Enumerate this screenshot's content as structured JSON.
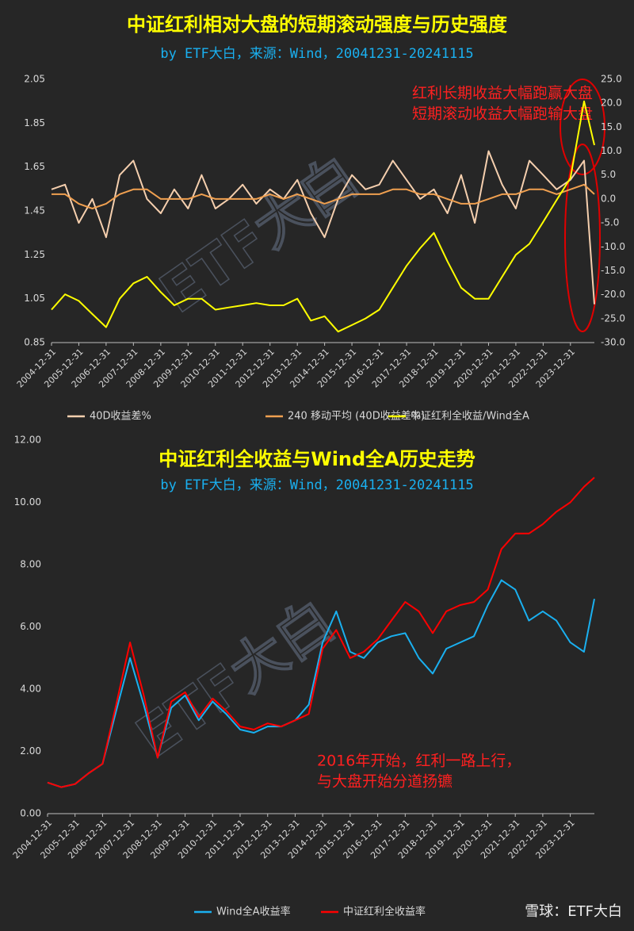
{
  "footer": "雪球：ETF大白",
  "chart_data": [
    {
      "type": "line",
      "title": "中证红利相对大盘的短期滚动强度与历史强度",
      "subtitle": "by ETF大白，来源：Wind，20041231-20241115",
      "annotations": [
        "红利长期收益大幅跑赢大盘",
        "短期滚动收益大幅跑输大盘"
      ],
      "watermark": "ETF大白",
      "x": [
        "2004-12-31",
        "2005-06-30",
        "2005-12-31",
        "2006-06-30",
        "2006-12-31",
        "2007-06-30",
        "2007-12-31",
        "2008-06-30",
        "2008-12-31",
        "2009-06-30",
        "2009-12-31",
        "2010-06-30",
        "2010-12-31",
        "2011-06-30",
        "2011-12-31",
        "2012-06-30",
        "2012-12-31",
        "2013-06-30",
        "2013-12-31",
        "2014-06-30",
        "2014-12-31",
        "2015-06-30",
        "2015-12-31",
        "2016-06-30",
        "2016-12-31",
        "2017-06-30",
        "2017-12-31",
        "2018-06-30",
        "2018-12-31",
        "2019-06-30",
        "2019-12-31",
        "2020-06-30",
        "2020-12-31",
        "2021-06-30",
        "2021-12-31",
        "2022-06-30",
        "2022-12-31",
        "2023-06-30",
        "2023-12-31",
        "2024-06-30",
        "2024-11-15"
      ],
      "xlim": [
        "2004-12-31",
        "2024-11-15"
      ],
      "xticks": [
        "2004-12-31",
        "2005-12-31",
        "2006-12-31",
        "2007-12-31",
        "2008-12-31",
        "2009-12-31",
        "2010-12-31",
        "2011-12-31",
        "2012-12-31",
        "2013-12-31",
        "2014-12-31",
        "2015-12-31",
        "2016-12-31",
        "2017-12-31",
        "2018-12-31",
        "2019-12-31",
        "2020-12-31",
        "2021-12-31",
        "2022-12-31",
        "2023-12-31"
      ],
      "ylim": [
        0.85,
        2.05
      ],
      "yticks": [
        0.85,
        1.05,
        1.25,
        1.45,
        1.65,
        1.85,
        2.05
      ],
      "y2lim": [
        -30,
        25
      ],
      "y2ticks": [
        {
          "value": -30,
          "label": "-30.0"
        },
        {
          "value": -25,
          "label": "-25.0"
        },
        {
          "value": -20,
          "label": "-20.0"
        },
        {
          "value": -15,
          "label": "-15.0"
        },
        {
          "value": -10,
          "label": "-10.0"
        },
        {
          "value": -5,
          "label": "-5.0"
        },
        {
          "value": 0,
          "label": "0.0"
        },
        {
          "value": 5,
          "label": "5.0"
        },
        {
          "value": 10,
          "label": "10.0"
        },
        {
          "value": 15,
          "label": "15.0"
        },
        {
          "value": 20,
          "label": "20.0"
        },
        {
          "value": 25,
          "label": "25.0"
        }
      ],
      "grid": false,
      "series": [
        {
          "name": "40D收益差%",
          "color": "#f5cfae",
          "axis": "y2",
          "values": [
            2,
            3,
            -5,
            0,
            -8,
            5,
            8,
            0,
            -3,
            2,
            -2,
            5,
            -2,
            0,
            3,
            -1,
            2,
            0,
            4,
            -3,
            -8,
            0,
            5,
            2,
            3,
            8,
            4,
            0,
            2,
            -3,
            5,
            -5,
            10,
            3,
            -2,
            8,
            5,
            2,
            4,
            8,
            -22
          ]
        },
        {
          "name": "240 移动平均 (40D收益差%)",
          "color": "#f0a050",
          "axis": "y2",
          "values": [
            1,
            1,
            -1,
            -2,
            -1,
            1,
            2,
            2,
            0,
            0,
            0,
            1,
            0,
            0,
            0,
            0,
            1,
            0,
            1,
            0,
            -1,
            0,
            1,
            1,
            1,
            2,
            2,
            1,
            1,
            0,
            -1,
            -1,
            0,
            1,
            1,
            2,
            2,
            1,
            2,
            3,
            1
          ]
        },
        {
          "name": "中证红利全收益/Wind全A",
          "color": "#ffff00",
          "axis": "y",
          "values": [
            1.0,
            1.07,
            1.04,
            0.98,
            0.92,
            1.05,
            1.12,
            1.15,
            1.08,
            1.02,
            1.05,
            1.05,
            1.0,
            1.01,
            1.02,
            1.03,
            1.02,
            1.02,
            1.05,
            0.95,
            0.97,
            0.9,
            0.93,
            0.96,
            1.0,
            1.1,
            1.2,
            1.28,
            1.35,
            1.22,
            1.1,
            1.05,
            1.05,
            1.15,
            1.25,
            1.3,
            1.4,
            1.5,
            1.6,
            1.95,
            1.75
          ]
        }
      ]
    },
    {
      "type": "line",
      "title": "中证红利全收益与Wind全A历史走势",
      "subtitle": "by ETF大白，来源：Wind，20041231-20241115",
      "annotations": [
        "2016年开始，红利一路上行，",
        "与大盘开始分道扬镳"
      ],
      "watermark": "ETF大白",
      "x": [
        "2004-12-31",
        "2005-06-30",
        "2005-12-31",
        "2006-06-30",
        "2006-12-31",
        "2007-06-30",
        "2007-12-31",
        "2008-06-30",
        "2008-12-31",
        "2009-06-30",
        "2009-12-31",
        "2010-06-30",
        "2010-12-31",
        "2011-06-30",
        "2011-12-31",
        "2012-06-30",
        "2012-12-31",
        "2013-06-30",
        "2013-12-31",
        "2014-06-30",
        "2014-12-31",
        "2015-06-30",
        "2015-12-31",
        "2016-06-30",
        "2016-12-31",
        "2017-06-30",
        "2017-12-31",
        "2018-06-30",
        "2018-12-31",
        "2019-06-30",
        "2019-12-31",
        "2020-06-30",
        "2020-12-31",
        "2021-06-30",
        "2021-12-31",
        "2022-06-30",
        "2022-12-31",
        "2023-06-30",
        "2023-12-31",
        "2024-06-30",
        "2024-11-15"
      ],
      "xlim": [
        "2004-12-31",
        "2024-11-15"
      ],
      "xticks": [
        "2004-12-31",
        "2005-12-31",
        "2006-12-31",
        "2007-12-31",
        "2008-12-31",
        "2009-12-31",
        "2010-12-31",
        "2011-12-31",
        "2012-12-31",
        "2013-12-31",
        "2014-12-31",
        "2015-12-31",
        "2016-12-31",
        "2017-12-31",
        "2018-12-31",
        "2019-12-31",
        "2020-12-31",
        "2021-12-31",
        "2022-12-31",
        "2023-12-31"
      ],
      "ylim": [
        0,
        12
      ],
      "yticks": [
        {
          "value": 0,
          "label": "0.00"
        },
        {
          "value": 2,
          "label": "2.00"
        },
        {
          "value": 4,
          "label": "4.00"
        },
        {
          "value": 6,
          "label": "6.00"
        },
        {
          "value": 8,
          "label": "8.00"
        },
        {
          "value": 10,
          "label": "10.00"
        },
        {
          "value": 12,
          "label": "12.00"
        }
      ],
      "grid": false,
      "series": [
        {
          "name": "Wind全A收益率",
          "color": "#1ab0f0",
          "axis": "y",
          "values": [
            1.0,
            0.85,
            0.95,
            1.3,
            1.6,
            3.3,
            5.0,
            3.5,
            1.8,
            3.4,
            3.8,
            3.0,
            3.6,
            3.2,
            2.7,
            2.6,
            2.8,
            2.8,
            3.0,
            3.5,
            5.5,
            6.5,
            5.2,
            5.0,
            5.5,
            5.7,
            5.8,
            5.0,
            4.5,
            5.3,
            5.5,
            5.7,
            6.7,
            7.5,
            7.2,
            6.2,
            6.5,
            6.2,
            5.5,
            5.2,
            6.9
          ]
        },
        {
          "name": "中证红利全收益率",
          "color": "#ff0000",
          "axis": "y",
          "values": [
            1.0,
            0.85,
            0.95,
            1.3,
            1.6,
            3.5,
            5.5,
            3.8,
            1.8,
            3.6,
            3.9,
            3.1,
            3.7,
            3.3,
            2.8,
            2.7,
            2.9,
            2.8,
            3.0,
            3.2,
            5.3,
            5.9,
            5.0,
            5.2,
            5.6,
            6.2,
            6.8,
            6.5,
            5.8,
            6.5,
            6.7,
            6.8,
            7.2,
            8.5,
            9.0,
            9.0,
            9.3,
            9.7,
            10.0,
            10.5,
            10.8
          ]
        }
      ]
    }
  ]
}
